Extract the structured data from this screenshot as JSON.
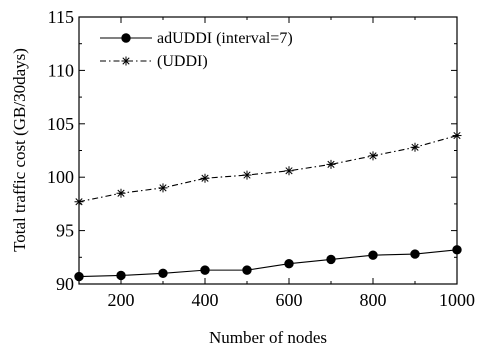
{
  "chart_data": {
    "type": "line",
    "title": "",
    "xlabel": "Number of nodes",
    "ylabel": "Total traffic cost (GB/30days)",
    "x": [
      100,
      200,
      300,
      400,
      500,
      600,
      700,
      800,
      900,
      1000
    ],
    "xlim": [
      100,
      1000
    ],
    "ylim": [
      90,
      115
    ],
    "xticks": [
      200,
      400,
      600,
      800,
      1000
    ],
    "yticks": [
      90,
      95,
      100,
      105,
      110,
      115
    ],
    "grid": false,
    "legend_position": "top-left",
    "series": [
      {
        "name": "adUDDI (interval=7)",
        "marker": "filled-circle",
        "line_style": "solid",
        "color": "#000000",
        "values": [
          90.7,
          90.8,
          91.0,
          91.3,
          91.3,
          91.9,
          92.3,
          92.7,
          92.8,
          93.2
        ]
      },
      {
        "name": "(UDDI)",
        "marker": "asterisk",
        "line_style": "dash-dot",
        "color": "#000000",
        "values": [
          97.7,
          98.5,
          99.0,
          99.9,
          100.2,
          100.6,
          101.2,
          102.0,
          102.8,
          103.9
        ]
      }
    ]
  }
}
